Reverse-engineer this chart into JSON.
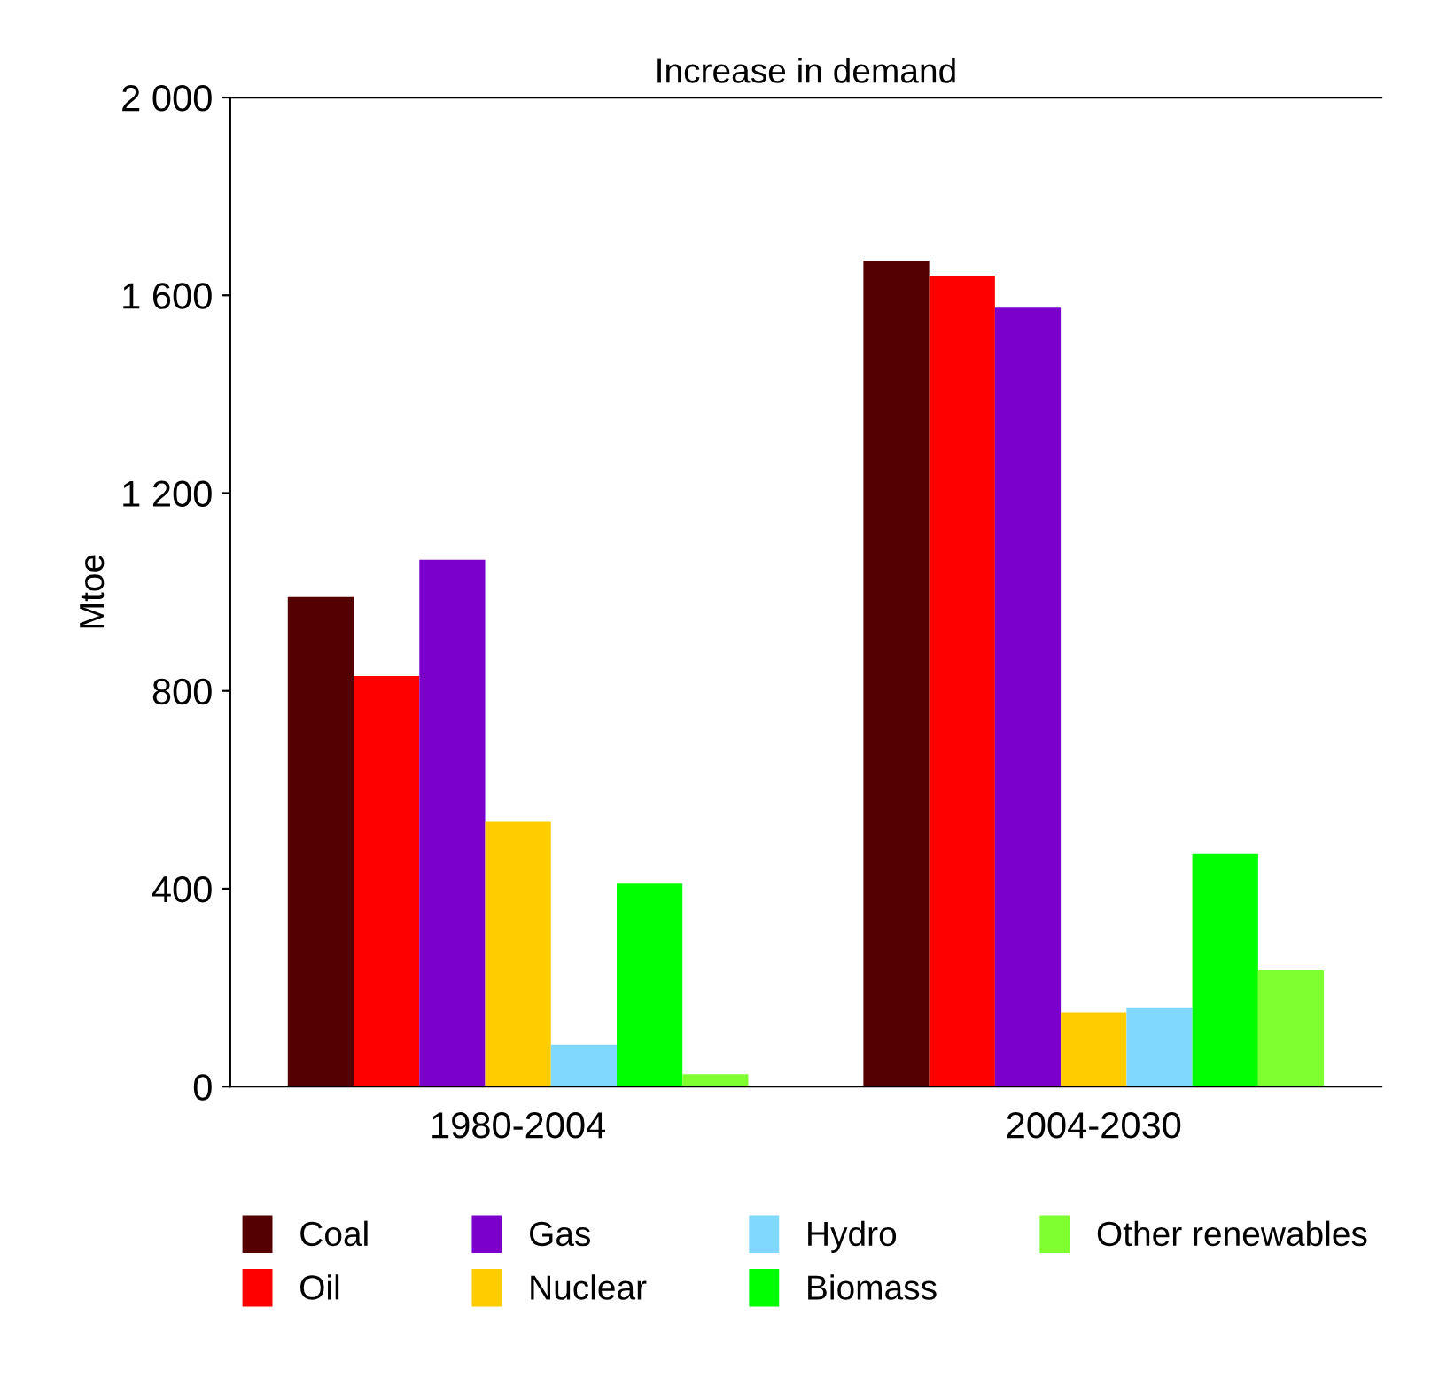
{
  "chart_data": {
    "type": "bar",
    "title": "Increase in demand",
    "ylabel": "Mtoe",
    "categories": [
      "1980-2004",
      "2004-2030"
    ],
    "series": [
      {
        "name": "Coal",
        "color": "#550000",
        "values": [
          990,
          1670
        ]
      },
      {
        "name": "Oil",
        "color": "#ff0000",
        "values": [
          830,
          1640
        ]
      },
      {
        "name": "Gas",
        "color": "#7b00cc",
        "values": [
          1065,
          1575
        ]
      },
      {
        "name": "Nuclear",
        "color": "#ffcc00",
        "values": [
          535,
          150
        ]
      },
      {
        "name": "Hydro",
        "color": "#80d8ff",
        "values": [
          85,
          160
        ]
      },
      {
        "name": "Biomass",
        "color": "#00ff00",
        "values": [
          410,
          470
        ]
      },
      {
        "name": "Other renewables",
        "color": "#80ff30",
        "values": [
          25,
          235
        ]
      }
    ],
    "ylim": [
      0,
      2000
    ],
    "yticks": [
      {
        "value": 0,
        "label": "0"
      },
      {
        "value": 400,
        "label": "400"
      },
      {
        "value": 800,
        "label": "800"
      },
      {
        "value": 1200,
        "label": "1 200"
      },
      {
        "value": 1600,
        "label": "1 600"
      },
      {
        "value": 2000,
        "label": "2 000"
      }
    ],
    "grid": false,
    "legend": "bottom"
  }
}
